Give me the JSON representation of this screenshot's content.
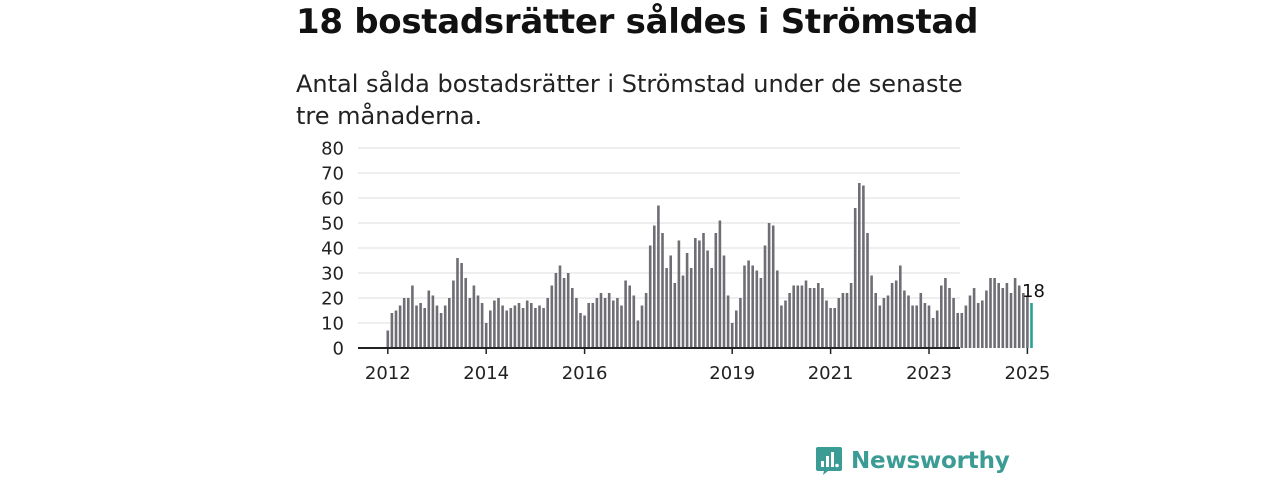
{
  "header": {
    "title": "18 bostadsrätter såldes i Strömstad",
    "subtitle": "Antal sålda bostadsrätter i Strömstad under de senaste tre månaderna."
  },
  "brand": {
    "name": "Newsworthy",
    "color": "#3a9c94",
    "icon": "bar-chart-speech-bubble-icon"
  },
  "chart_data": {
    "type": "bar",
    "title": "",
    "xlabel": "",
    "ylabel": "",
    "ylim": [
      0,
      80
    ],
    "yticks": [
      0,
      10,
      20,
      30,
      40,
      50,
      60,
      70,
      80
    ],
    "grid": true,
    "bar_color": "#6e6e74",
    "highlight_color": "#2aa198",
    "highlight_last": true,
    "value_label": "18",
    "x_start": "2012-01",
    "x_end": "2025-03",
    "xtick_labels": [
      "2012",
      "2014",
      "2016",
      "2019",
      "2021",
      "2023",
      "2025"
    ],
    "values": [
      7,
      14,
      15,
      17,
      20,
      20,
      25,
      17,
      18,
      16,
      23,
      21,
      17,
      14,
      17,
      20,
      27,
      36,
      34,
      28,
      20,
      25,
      21,
      18,
      10,
      15,
      19,
      20,
      17,
      15,
      16,
      17,
      18,
      16,
      19,
      18,
      16,
      17,
      16,
      20,
      25,
      30,
      33,
      28,
      30,
      24,
      20,
      14,
      13,
      18,
      18,
      20,
      22,
      20,
      22,
      19,
      20,
      17,
      27,
      25,
      21,
      11,
      17,
      22,
      41,
      49,
      57,
      46,
      32,
      37,
      26,
      43,
      29,
      38,
      32,
      44,
      43,
      46,
      39,
      32,
      46,
      51,
      37,
      21,
      10,
      15,
      20,
      33,
      35,
      33,
      31,
      28,
      41,
      50,
      49,
      31,
      17,
      19,
      22,
      25,
      25,
      25,
      27,
      24,
      24,
      26,
      24,
      19,
      16,
      16,
      20,
      22,
      22,
      26,
      56,
      66,
      65,
      46,
      29,
      22,
      17,
      20,
      21,
      26,
      27,
      33,
      23,
      21,
      17,
      17,
      22,
      18,
      17,
      12,
      15,
      25,
      28,
      24,
      20,
      14,
      14,
      17,
      21,
      24,
      18,
      19,
      23,
      28,
      28,
      26,
      24,
      26,
      22,
      28,
      25,
      22,
      21,
      18
    ]
  }
}
